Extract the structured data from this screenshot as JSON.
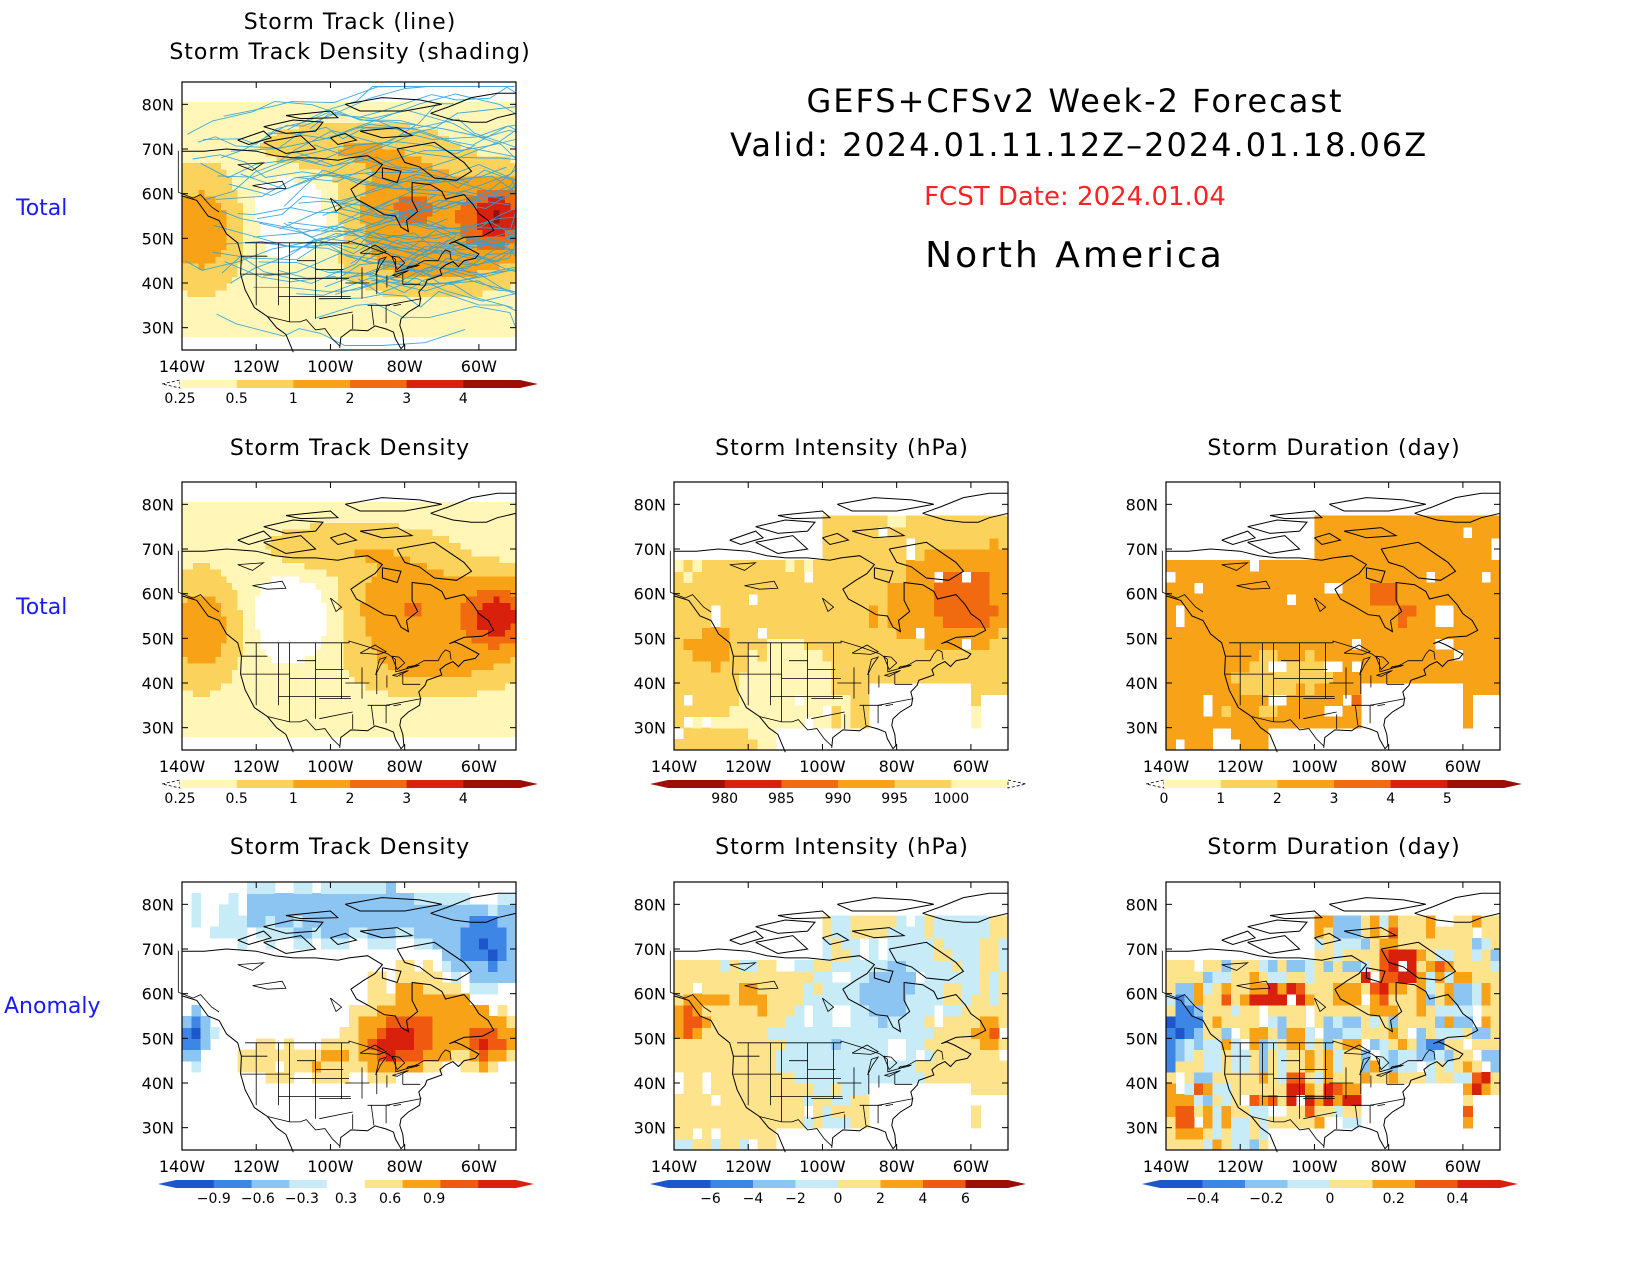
{
  "header": {
    "line1": "GEFS+CFSv2 Week-2 Forecast",
    "line2": "Valid: 2024.01.11.12Z–2024.01.18.06Z",
    "fcst": "FCST Date: 2024.01.04",
    "region": "North America",
    "fcst_color": "#ff2222"
  },
  "rows": [
    {
      "label": "Total"
    },
    {
      "label": "Total"
    },
    {
      "label": "Anomaly"
    }
  ],
  "panels": {
    "p_track": {
      "title1": "Storm Track (line)",
      "title2": "Storm Track Density (shading)"
    },
    "p_dens_total": {
      "title": "Storm Track Density"
    },
    "p_int_total": {
      "title": "Storm Intensity (hPa)"
    },
    "p_dur_total": {
      "title": "Storm Duration (day)"
    },
    "p_dens_anom": {
      "title": "Storm Track Density"
    },
    "p_int_anom": {
      "title": "Storm Intensity (hPa)"
    },
    "p_dur_anom": {
      "title": "Storm Duration (day)"
    }
  },
  "axes": {
    "lat_ticks": [
      "80N",
      "70N",
      "60N",
      "50N",
      "40N",
      "30N"
    ],
    "lon_ticks": [
      "140W",
      "120W",
      "100W",
      "80W",
      "60W"
    ]
  },
  "colorbars": {
    "density_total": {
      "labels": [
        "0.25",
        "0.5",
        "1",
        "2",
        "3",
        "4"
      ],
      "colors": [
        "#fff6b8",
        "#fbd35c",
        "#f8a218",
        "#f26a10",
        "#d8200c",
        "#9b0f06"
      ]
    },
    "intensity_total": {
      "labels": [
        "980",
        "985",
        "990",
        "995",
        "1000"
      ],
      "colors": [
        "#9b0f06",
        "#d8200c",
        "#f26a10",
        "#f8a218",
        "#fbd35c",
        "#fff6b8"
      ]
    },
    "duration_total": {
      "labels": [
        "0",
        "1",
        "2",
        "3",
        "4",
        "5"
      ],
      "colors": [
        "#fff6b8",
        "#fbd35c",
        "#f8a218",
        "#f26a10",
        "#d8200c",
        "#9b0f06"
      ]
    },
    "density_anom": {
      "labels": [
        "−0.9",
        "−0.6",
        "−0.3",
        "0.3",
        "0.6",
        "0.9"
      ],
      "colors": [
        "#1e56cc",
        "#3e86e6",
        "#8cc4f2",
        "#c7ecf8",
        "#ffffff",
        "#fde48c",
        "#f8a218",
        "#f05a10",
        "#d8200c"
      ]
    },
    "intensity_anom": {
      "labels": [
        "−6",
        "−4",
        "−2",
        "0",
        "2",
        "4",
        "6"
      ],
      "colors": [
        "#1e56cc",
        "#3e86e6",
        "#8cc4f2",
        "#c7ecf8",
        "#fde48c",
        "#f8a218",
        "#f05a10",
        "#9b0f06"
      ]
    },
    "duration_anom": {
      "labels": [
        "−0.4",
        "−0.2",
        "0",
        "0.2",
        "0.4"
      ],
      "colors": [
        "#1e56cc",
        "#3e86e6",
        "#8cc4f2",
        "#c7ecf8",
        "#fde48c",
        "#f8a218",
        "#f05a10",
        "#d8200c"
      ]
    }
  },
  "chart_data": [
    {
      "type": "heatmap",
      "title": "Storm Track (line) / Storm Track Density (shading)",
      "region": "North America",
      "xlabel": "",
      "ylabel": "",
      "x_ticks": [
        "140W",
        "120W",
        "100W",
        "80W",
        "60W"
      ],
      "y_ticks": [
        "80N",
        "70N",
        "60N",
        "50N",
        "40N",
        "30N"
      ],
      "legend_levels": [
        0.25,
        0.5,
        1,
        2,
        3,
        4
      ],
      "max_region": "Labrador / Hudson Bay (~55N, 55W)"
    },
    {
      "type": "heatmap",
      "title": "Storm Track Density",
      "legend_levels": [
        0.25,
        0.5,
        1,
        2,
        3,
        4
      ],
      "max_region": "~55N 55W"
    },
    {
      "type": "heatmap",
      "title": "Storm Intensity (hPa)",
      "legend_levels": [
        980,
        985,
        990,
        995,
        1000
      ]
    },
    {
      "type": "heatmap",
      "title": "Storm Duration (day)",
      "legend_levels": [
        0,
        1,
        2,
        3,
        4,
        5
      ]
    },
    {
      "type": "heatmap",
      "title": "Storm Track Density",
      "legend_levels": [
        -0.9,
        -0.6,
        -0.3,
        0.3,
        0.6,
        0.9
      ]
    },
    {
      "type": "heatmap",
      "title": "Storm Intensity (hPa)",
      "legend_levels": [
        -6,
        -4,
        -2,
        0,
        2,
        4,
        6
      ]
    },
    {
      "type": "heatmap",
      "title": "Storm Duration (day)",
      "legend_levels": [
        -0.4,
        -0.2,
        0,
        0.2,
        0.4
      ]
    }
  ]
}
